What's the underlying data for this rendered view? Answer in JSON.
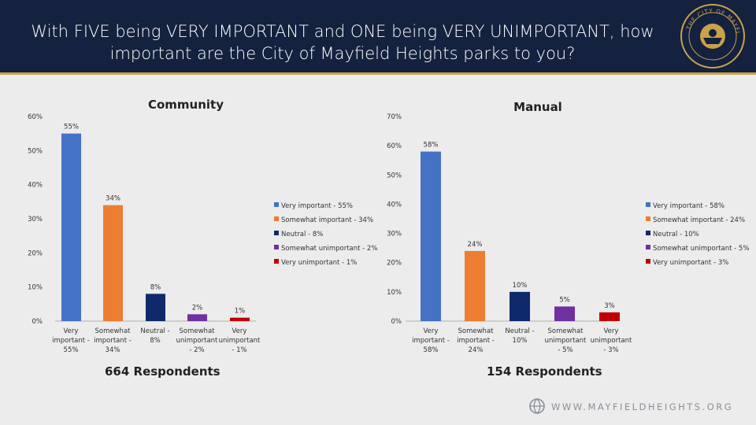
{
  "header": {
    "title": "With FIVE being VERY IMPORTANT and ONE being VERY UNIMPORTANT, how important are the City of Mayfield Heights parks to you?",
    "seal_text": "THE CITY OF MAYFIELD HEIGHTS OHIO"
  },
  "colors": {
    "header_bg": "#14213f",
    "accent": "#c8a24a",
    "very_important": "#4472c4",
    "somewhat_important": "#ed7d31",
    "neutral": "#0f2a6b",
    "somewhat_unimportant": "#7030a0",
    "very_unimportant": "#c00000"
  },
  "chart_data": [
    {
      "type": "bar",
      "title": "Community",
      "categories": [
        "Very important - 55%",
        "Somewhat important - 34%",
        "Neutral - 8%",
        "Somewhat unimportant - 2%",
        "Very unimportant - 1%"
      ],
      "values": [
        55,
        34,
        8,
        2,
        1
      ],
      "data_labels": [
        "55%",
        "34%",
        "8%",
        "2%",
        "1%"
      ],
      "yticks": [
        "0%",
        "10%",
        "20%",
        "30%",
        "40%",
        "50%",
        "60%"
      ],
      "ylim": [
        0,
        60
      ],
      "legend": [
        "Very important - 55%",
        "Somewhat important - 34%",
        "Neutral - 8%",
        "Somewhat unimportant - 2%",
        "Very unimportant - 1%"
      ],
      "legend_position": "right",
      "respondents": "664 Respondents",
      "grid": false
    },
    {
      "type": "bar",
      "title": "Manual",
      "categories": [
        "Very important - 58%",
        "Somewhat important - 24%",
        "Neutral - 10%",
        "Somewhat unimportant - 5%",
        "Very unimportant - 3%"
      ],
      "values": [
        58,
        24,
        10,
        5,
        3
      ],
      "data_labels": [
        "58%",
        "24%",
        "10%",
        "5%",
        "3%"
      ],
      "yticks": [
        "0%",
        "10%",
        "20%",
        "30%",
        "40%",
        "50%",
        "60%",
        "70%"
      ],
      "ylim": [
        0,
        70
      ],
      "legend": [
        "Very important - 58%",
        "Somewhat important - 24%",
        "Neutral - 10%",
        "Somewhat unimportant - 5%",
        "Very unimportant - 3%"
      ],
      "legend_position": "right",
      "respondents": "154 Respondents",
      "grid": false
    }
  ],
  "footer": {
    "url": "WWW.MAYFIELDHEIGHTS.ORG"
  }
}
